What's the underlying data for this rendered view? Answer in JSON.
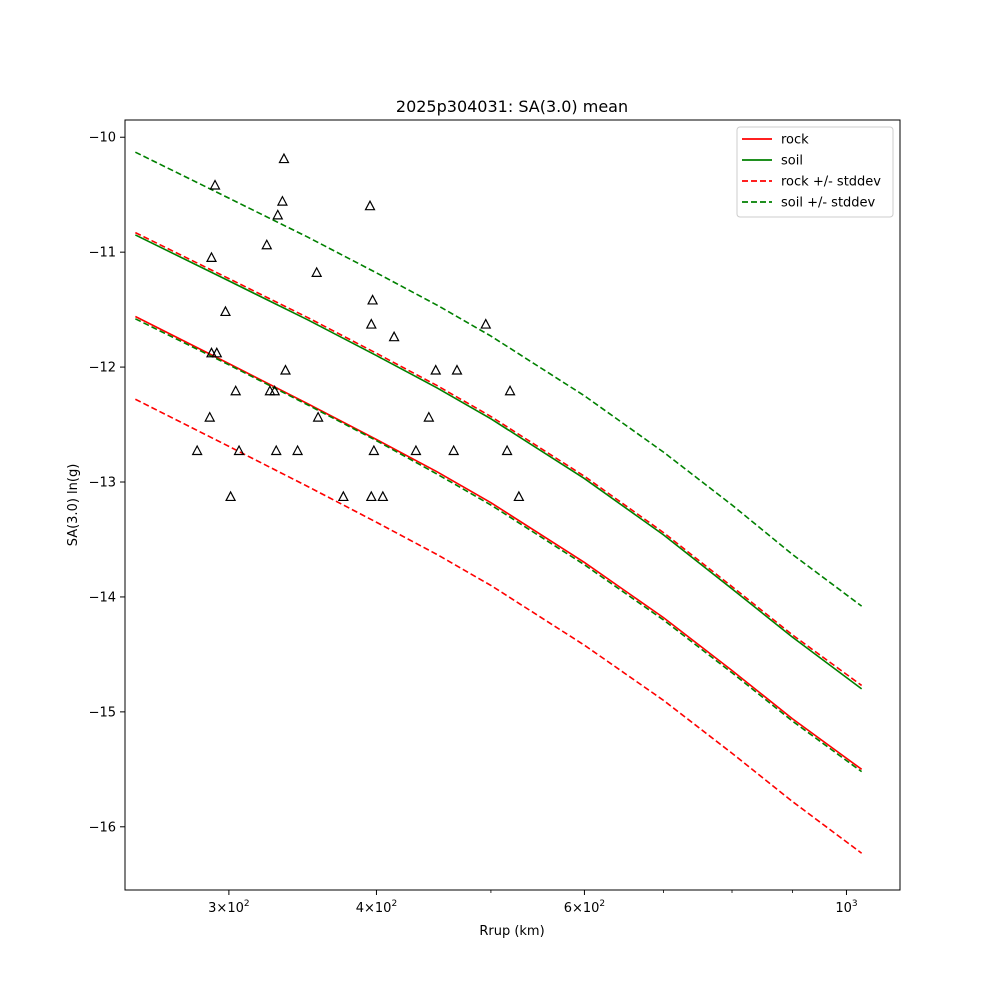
{
  "chart_data": {
    "type": "line",
    "title": "2025p304031: SA(3.0) mean",
    "xlabel": "Rrup (km)",
    "ylabel": "SA(3.0) ln(g)",
    "x_scale": "log",
    "xlim": [
      245,
      1110
    ],
    "ylim": [
      -16.55,
      -9.85
    ],
    "grid": false,
    "legend_position": "top-right",
    "x_major_ticks": [
      {
        "value": 300,
        "base": "3×10",
        "exp": "2"
      },
      {
        "value": 400,
        "base": "4×10",
        "exp": "2"
      },
      {
        "value": 600,
        "base": "6×10",
        "exp": "2"
      },
      {
        "value": 1000,
        "base": "10",
        "exp": "3"
      }
    ],
    "x_minor_ticks": [
      500,
      700,
      800,
      900
    ],
    "y_ticks": [
      {
        "value": -10,
        "label": "−10"
      },
      {
        "value": -11,
        "label": "−11"
      },
      {
        "value": -12,
        "label": "−12"
      },
      {
        "value": -13,
        "label": "−13"
      },
      {
        "value": -14,
        "label": "−14"
      },
      {
        "value": -15,
        "label": "−15"
      },
      {
        "value": -16,
        "label": "−16"
      }
    ],
    "series": [
      {
        "name": "rock",
        "color": "#ff0000",
        "style": "solid",
        "x": [
          250,
          300,
          350,
          400,
          450,
          500,
          600,
          700,
          800,
          900,
          1030
        ],
        "y": [
          -11.56,
          -11.97,
          -12.32,
          -12.63,
          -12.91,
          -13.18,
          -13.7,
          -14.18,
          -14.64,
          -15.06,
          -15.5
        ]
      },
      {
        "name": "soil",
        "color": "#008000",
        "style": "solid",
        "x": [
          250,
          300,
          350,
          400,
          450,
          500,
          600,
          700,
          800,
          900,
          1030
        ],
        "y": [
          -10.85,
          -11.25,
          -11.59,
          -11.9,
          -12.18,
          -12.45,
          -12.97,
          -13.46,
          -13.93,
          -14.35,
          -14.8
        ]
      },
      {
        "name": "rock +/- stddev",
        "color": "#ff0000",
        "style": "dashed",
        "x": [
          250,
          300,
          350,
          400,
          450,
          500,
          600,
          700,
          800,
          900,
          1030
        ],
        "y": [
          -10.83,
          -11.23,
          -11.57,
          -11.88,
          -12.16,
          -12.43,
          -12.95,
          -13.44,
          -13.91,
          -14.33,
          -14.77
        ]
      },
      {
        "name": "rock +/- stddev",
        "color": "#ff0000",
        "style": "dashed",
        "legend": false,
        "x": [
          250,
          300,
          350,
          400,
          450,
          500,
          600,
          700,
          800,
          900,
          1030
        ],
        "y": [
          -12.28,
          -12.69,
          -13.04,
          -13.35,
          -13.63,
          -13.9,
          -14.42,
          -14.9,
          -15.36,
          -15.78,
          -16.23
        ]
      },
      {
        "name": "soil +/- stddev",
        "color": "#008000",
        "style": "dashed",
        "x": [
          250,
          300,
          350,
          400,
          450,
          500,
          600,
          700,
          800,
          900,
          1030
        ],
        "y": [
          -10.13,
          -10.53,
          -10.87,
          -11.18,
          -11.46,
          -11.73,
          -12.25,
          -12.74,
          -13.2,
          -13.63,
          -14.08
        ]
      },
      {
        "name": "soil +/- stddev",
        "color": "#008000",
        "style": "dashed",
        "legend": false,
        "x": [
          250,
          300,
          350,
          400,
          450,
          500,
          600,
          700,
          800,
          900,
          1030
        ],
        "y": [
          -11.58,
          -11.98,
          -12.33,
          -12.64,
          -12.93,
          -13.2,
          -13.72,
          -14.2,
          -14.66,
          -15.08,
          -15.52
        ]
      }
    ],
    "observations": {
      "marker": "triangle",
      "color": "#000000",
      "points": [
        [
          282,
          -12.73
        ],
        [
          289,
          -12.44
        ],
        [
          290,
          -11.05
        ],
        [
          290,
          -11.88
        ],
        [
          292,
          -10.42
        ],
        [
          293,
          -11.88
        ],
        [
          298,
          -11.52
        ],
        [
          301,
          -13.13
        ],
        [
          304,
          -12.21
        ],
        [
          306,
          -12.73
        ],
        [
          323,
          -10.94
        ],
        [
          325,
          -12.21
        ],
        [
          328,
          -12.21
        ],
        [
          329,
          -12.73
        ],
        [
          330,
          -10.68
        ],
        [
          333,
          -10.56
        ],
        [
          334,
          -10.19
        ],
        [
          335,
          -12.03
        ],
        [
          343,
          -12.73
        ],
        [
          356,
          -11.18
        ],
        [
          357,
          -12.44
        ],
        [
          375,
          -13.13
        ],
        [
          395,
          -10.6
        ],
        [
          396,
          -11.63
        ],
        [
          396,
          -13.13
        ],
        [
          397,
          -11.42
        ],
        [
          398,
          -12.73
        ],
        [
          405,
          -13.13
        ],
        [
          414,
          -11.74
        ],
        [
          432,
          -12.73
        ],
        [
          443,
          -12.44
        ],
        [
          449,
          -12.03
        ],
        [
          465,
          -12.73
        ],
        [
          468,
          -12.03
        ],
        [
          495,
          -11.63
        ],
        [
          516,
          -12.73
        ],
        [
          519,
          -12.21
        ],
        [
          528,
          -13.13
        ]
      ]
    }
  }
}
